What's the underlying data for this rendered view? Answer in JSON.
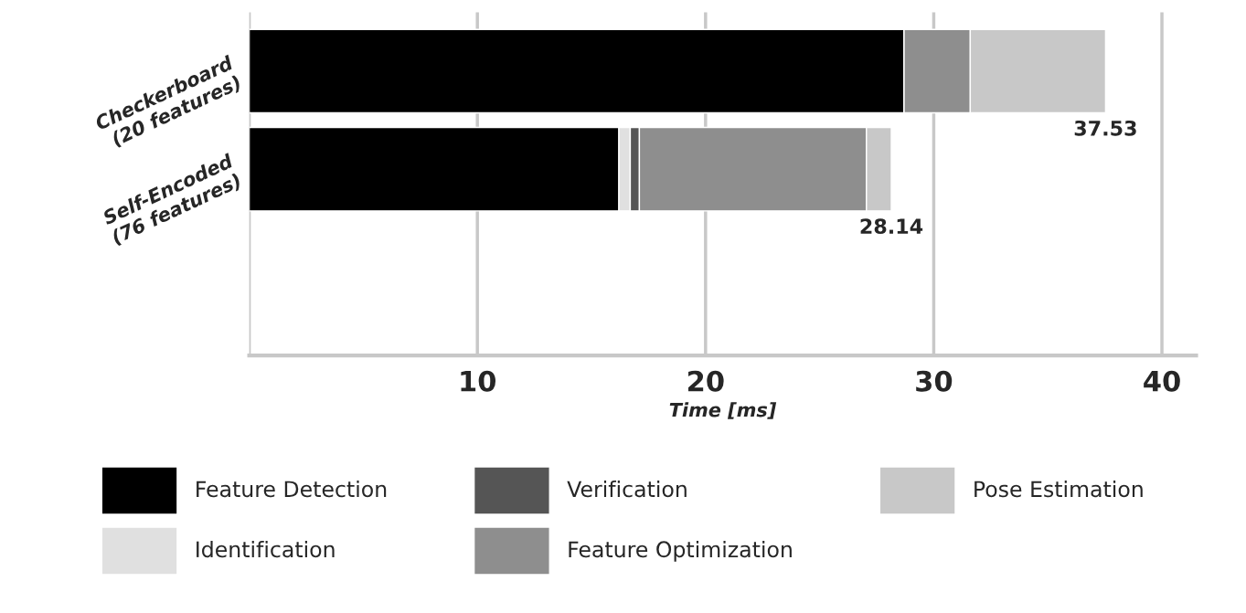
{
  "chart_data": {
    "type": "bar",
    "orientation": "horizontal",
    "stacked": true,
    "xlabel": "Time [ms]",
    "categories": [
      "Checkerboard\n(20 features)",
      "Self-Encoded\n(76 features)"
    ],
    "series": [
      {
        "name": "Feature Detection",
        "color": "#000000",
        "values": [
          28.7,
          16.2
        ]
      },
      {
        "name": "Identification",
        "color": "#e0e0e0",
        "values": [
          0,
          0.5
        ]
      },
      {
        "name": "Verification",
        "color": "#555555",
        "values": [
          0,
          0.4
        ]
      },
      {
        "name": "Feature Optimization",
        "color": "#8e8e8e",
        "values": [
          2.9,
          9.95
        ]
      },
      {
        "name": "Pose Estimation",
        "color": "#c8c8c8",
        "values": [
          5.93,
          1.09
        ]
      }
    ],
    "totals": [
      "37.53",
      "28.14"
    ],
    "xlim": [
      0,
      41.5
    ],
    "xticks": [
      {
        "value": 0,
        "label": null
      },
      10,
      20,
      30,
      40
    ],
    "grid": "x",
    "legend": "bottom"
  }
}
